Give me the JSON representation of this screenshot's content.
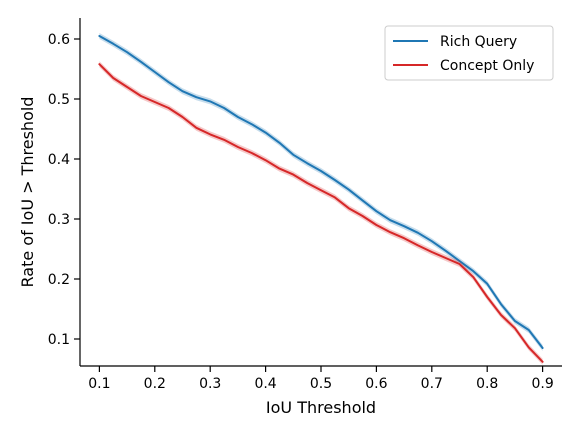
{
  "chart_data": {
    "type": "line",
    "xlabel": "IoU Threshold",
    "ylabel": "Rate of IoU > Threshold",
    "xlim": [
      0.065,
      0.935
    ],
    "ylim": [
      0.055,
      0.635
    ],
    "x_ticks": [
      0.1,
      0.2,
      0.3,
      0.4,
      0.5,
      0.6,
      0.7,
      0.8,
      0.9
    ],
    "x_tick_labels": [
      "0.1",
      "0.2",
      "0.3",
      "0.4",
      "0.5",
      "0.6",
      "0.7",
      "0.8",
      "0.9"
    ],
    "y_ticks": [
      0.1,
      0.2,
      0.3,
      0.4,
      0.5,
      0.6
    ],
    "y_tick_labels": [
      "0.1",
      "0.2",
      "0.3",
      "0.4",
      "0.5",
      "0.6"
    ],
    "grid": false,
    "legend_position": "top-right",
    "x": [
      0.1,
      0.125,
      0.15,
      0.175,
      0.2,
      0.225,
      0.25,
      0.275,
      0.3,
      0.325,
      0.35,
      0.375,
      0.4,
      0.425,
      0.45,
      0.475,
      0.5,
      0.525,
      0.55,
      0.575,
      0.6,
      0.625,
      0.65,
      0.675,
      0.7,
      0.725,
      0.75,
      0.775,
      0.8,
      0.825,
      0.85,
      0.875,
      0.9
    ],
    "series": [
      {
        "name": "Rich Query",
        "color": "#1f77b4",
        "values": [
          0.605,
          0.592,
          0.578,
          0.562,
          0.545,
          0.528,
          0.513,
          0.503,
          0.496,
          0.485,
          0.47,
          0.458,
          0.444,
          0.427,
          0.407,
          0.393,
          0.38,
          0.365,
          0.349,
          0.331,
          0.313,
          0.298,
          0.288,
          0.277,
          0.263,
          0.247,
          0.23,
          0.213,
          0.192,
          0.158,
          0.13,
          0.115,
          0.085
        ]
      },
      {
        "name": "Concept Only",
        "color": "#d62728",
        "values": [
          0.558,
          0.535,
          0.52,
          0.505,
          0.495,
          0.485,
          0.47,
          0.452,
          0.441,
          0.432,
          0.42,
          0.41,
          0.398,
          0.384,
          0.374,
          0.36,
          0.348,
          0.336,
          0.318,
          0.305,
          0.29,
          0.278,
          0.268,
          0.256,
          0.245,
          0.235,
          0.225,
          0.203,
          0.17,
          0.14,
          0.118,
          0.086,
          0.062
        ]
      }
    ]
  }
}
